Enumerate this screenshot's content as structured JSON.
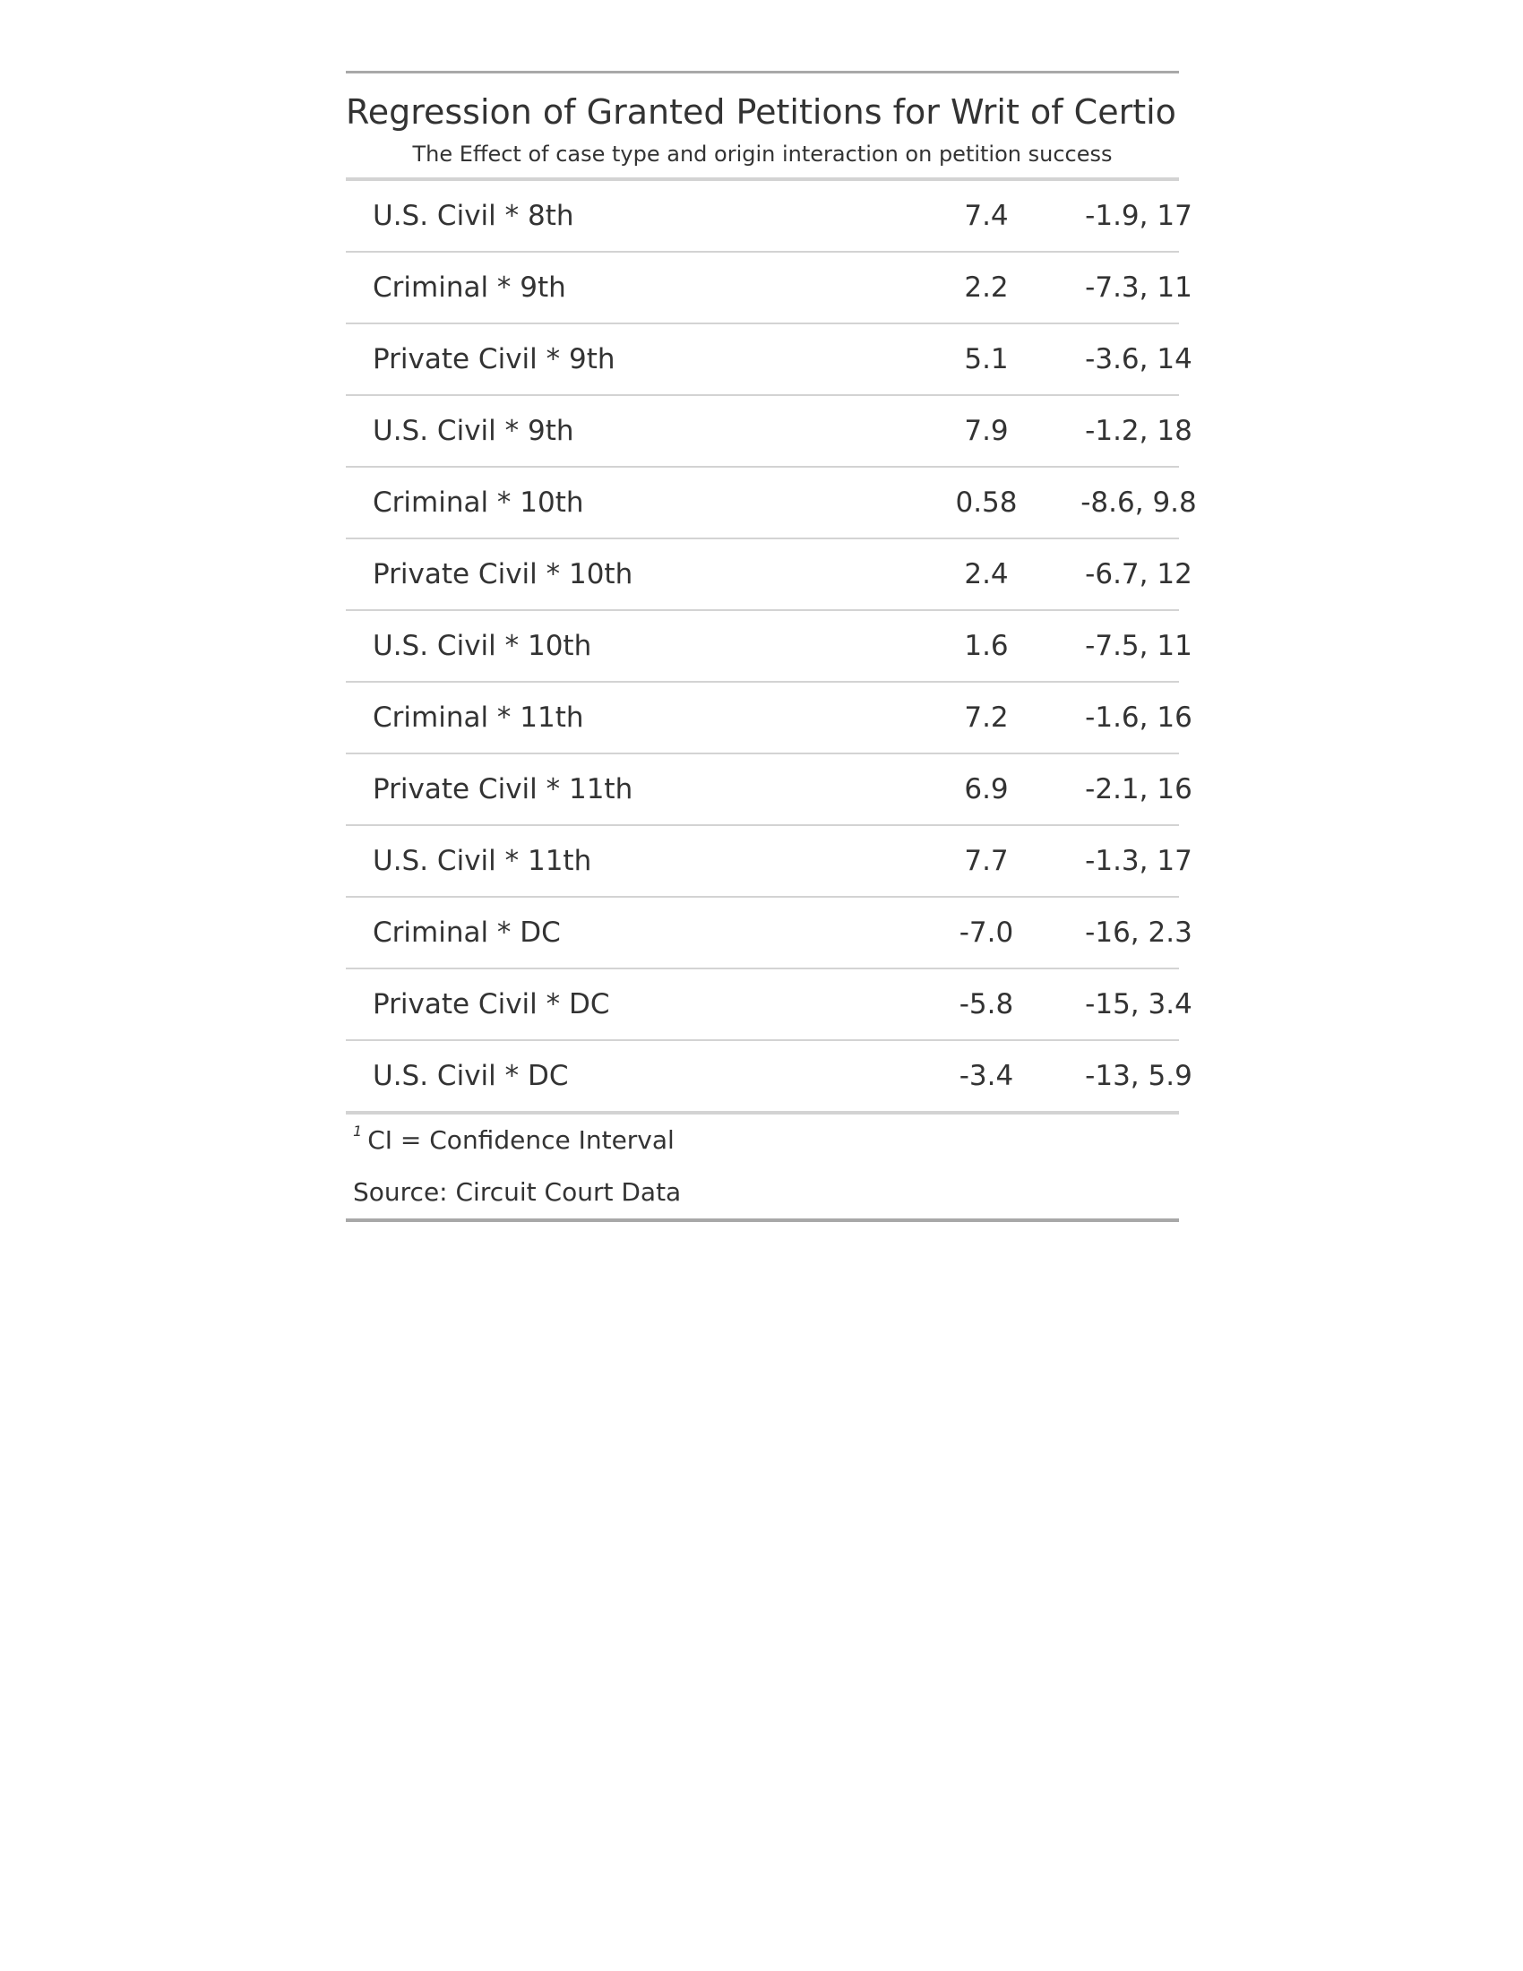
{
  "table": {
    "title": "Regression of Granted Petitions for Writ of Certiori",
    "subtitle": "The Effect of case type and origin interaction on petition success",
    "rows": [
      {
        "label": "U.S. Civil * 8th",
        "beta": "7.4",
        "ci": "-1.9, 17"
      },
      {
        "label": "Criminal * 9th",
        "beta": "2.2",
        "ci": "-7.3, 11"
      },
      {
        "label": "Private Civil * 9th",
        "beta": "5.1",
        "ci": "-3.6, 14"
      },
      {
        "label": "U.S. Civil * 9th",
        "beta": "7.9",
        "ci": "-1.2, 18"
      },
      {
        "label": "Criminal * 10th",
        "beta": "0.58",
        "ci": "-8.6, 9.8"
      },
      {
        "label": "Private Civil * 10th",
        "beta": "2.4",
        "ci": "-6.7, 12"
      },
      {
        "label": "U.S. Civil * 10th",
        "beta": "1.6",
        "ci": "-7.5, 11"
      },
      {
        "label": "Criminal * 11th",
        "beta": "7.2",
        "ci": "-1.6, 16"
      },
      {
        "label": "Private Civil * 11th",
        "beta": "6.9",
        "ci": "-2.1, 16"
      },
      {
        "label": "U.S. Civil * 11th",
        "beta": "7.7",
        "ci": "-1.3, 17"
      },
      {
        "label": "Criminal * DC",
        "beta": "-7.0",
        "ci": "-16, 2.3"
      },
      {
        "label": "Private Civil * DC",
        "beta": "-5.8",
        "ci": "-15, 3.4"
      },
      {
        "label": "U.S. Civil * DC",
        "beta": "-3.4",
        "ci": "-13, 5.9"
      }
    ],
    "footnote_marker": "1",
    "footnote": "CI = Confidence Interval",
    "source": "Source: Circuit Court Data"
  }
}
